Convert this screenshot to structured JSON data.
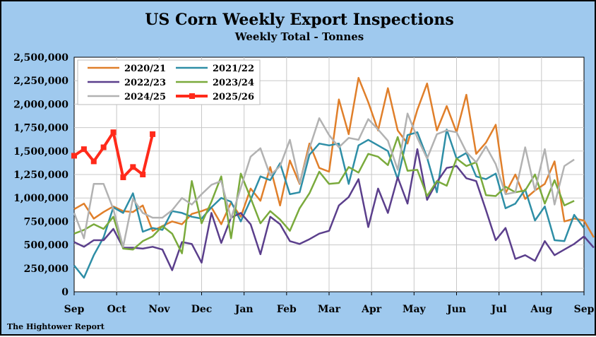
{
  "chart_data": {
    "type": "line",
    "title": "US Corn Weekly Export Inspections",
    "subtitle": "Weekly Total - Tonnes",
    "xlabel": "",
    "ylabel": "",
    "ylim": [
      0,
      2500000
    ],
    "y_ticks": [
      "0",
      "250,000",
      "500,000",
      "750,000",
      "1,000,000",
      "1,250,000",
      "1,500,000",
      "1,750,000",
      "2,000,000",
      "2,250,000",
      "2,500,000"
    ],
    "x_ticks": [
      "Sep",
      "Oct",
      "Nov",
      "Dec",
      "Jan",
      "Feb",
      "Mar",
      "Apr",
      "May",
      "Jun",
      "Jul",
      "Aug",
      "Sep"
    ],
    "x_range_weeks": [
      0,
      52
    ],
    "grid": true,
    "legend_position": "top-left",
    "series": [
      {
        "name": "2020/21",
        "color": "#e07f2a",
        "marker": false,
        "width": 2.5,
        "values": [
          880000,
          940000,
          780000,
          850000,
          910000,
          860000,
          850000,
          920000,
          650000,
          700000,
          750000,
          720000,
          830000,
          860000,
          900000,
          720000,
          950000,
          800000,
          1100000,
          970000,
          1330000,
          920000,
          1400000,
          1150000,
          1580000,
          1320000,
          1280000,
          2050000,
          1680000,
          2280000,
          2020000,
          1720000,
          2170000,
          1720000,
          1580000,
          1940000,
          2220000,
          1720000,
          1980000,
          1700000,
          2100000,
          1470000,
          1590000,
          1780000,
          1050000,
          1250000,
          990000,
          1080000,
          1150000,
          1390000,
          750000,
          780000,
          760000,
          580000
        ]
      },
      {
        "name": "2021/22",
        "color": "#2e8ea6",
        "marker": false,
        "width": 2.5,
        "values": [
          280000,
          150000,
          390000,
          580000,
          900000,
          840000,
          1050000,
          640000,
          680000,
          660000,
          860000,
          840000,
          800000,
          780000,
          900000,
          1000000,
          960000,
          750000,
          980000,
          1230000,
          1190000,
          1370000,
          1040000,
          1060000,
          1460000,
          1580000,
          1560000,
          1580000,
          1150000,
          1560000,
          1620000,
          1560000,
          1500000,
          1200000,
          1670000,
          1700000,
          1430000,
          1060000,
          1730000,
          1420000,
          1480000,
          1230000,
          1200000,
          1260000,
          890000,
          940000,
          1090000,
          760000,
          910000,
          550000,
          540000,
          820000,
          680000
        ]
      },
      {
        "name": "2022/23",
        "color": "#5b3f8c",
        "marker": false,
        "width": 2.5,
        "values": [
          530000,
          480000,
          550000,
          550000,
          670000,
          470000,
          470000,
          460000,
          480000,
          450000,
          230000,
          530000,
          510000,
          310000,
          840000,
          520000,
          790000,
          840000,
          720000,
          400000,
          800000,
          720000,
          540000,
          510000,
          560000,
          620000,
          650000,
          920000,
          1010000,
          1200000,
          690000,
          1100000,
          840000,
          1220000,
          940000,
          1520000,
          980000,
          1170000,
          1320000,
          1340000,
          1210000,
          1180000,
          870000,
          550000,
          680000,
          350000,
          390000,
          330000,
          540000,
          390000,
          450000,
          510000,
          590000,
          470000
        ]
      },
      {
        "name": "2023/24",
        "color": "#7aaa3c",
        "marker": false,
        "width": 2.5,
        "values": [
          620000,
          660000,
          720000,
          670000,
          800000,
          460000,
          450000,
          540000,
          590000,
          700000,
          620000,
          410000,
          1180000,
          730000,
          960000,
          1230000,
          570000,
          1260000,
          1000000,
          730000,
          860000,
          770000,
          650000,
          890000,
          1050000,
          1280000,
          1150000,
          1160000,
          1330000,
          1270000,
          1470000,
          1440000,
          1350000,
          1650000,
          1290000,
          1300000,
          1020000,
          1180000,
          1130000,
          1420000,
          1340000,
          1380000,
          1030000,
          1020000,
          1120000,
          1060000,
          1080000,
          1250000,
          940000,
          1190000,
          920000,
          970000
        ]
      },
      {
        "name": "2024/25",
        "color": "#b2b2b2",
        "marker": false,
        "width": 2.5,
        "values": [
          840000,
          570000,
          1150000,
          1150000,
          880000,
          480000,
          990000,
          840000,
          790000,
          790000,
          870000,
          1000000,
          930000,
          1040000,
          1140000,
          1180000,
          780000,
          1110000,
          1440000,
          1530000,
          1240000,
          1340000,
          1620000,
          1160000,
          1530000,
          1850000,
          1670000,
          1540000,
          1640000,
          1620000,
          1840000,
          1730000,
          1610000,
          1300000,
          1900000,
          1640000,
          1420000,
          1680000,
          1720000,
          1700000,
          1490000,
          1380000,
          1550000,
          1360000,
          1040000,
          1060000,
          1540000,
          1080000,
          1520000,
          930000,
          1340000,
          1410000
        ]
      },
      {
        "name": "2025/26",
        "color": "#ff2a1a",
        "marker": true,
        "width": 4,
        "values": [
          1450000,
          1520000,
          1390000,
          1540000,
          1700000,
          1220000,
          1330000,
          1250000,
          1680000
        ]
      }
    ]
  },
  "footer": {
    "credit": "The Hightower Report"
  }
}
